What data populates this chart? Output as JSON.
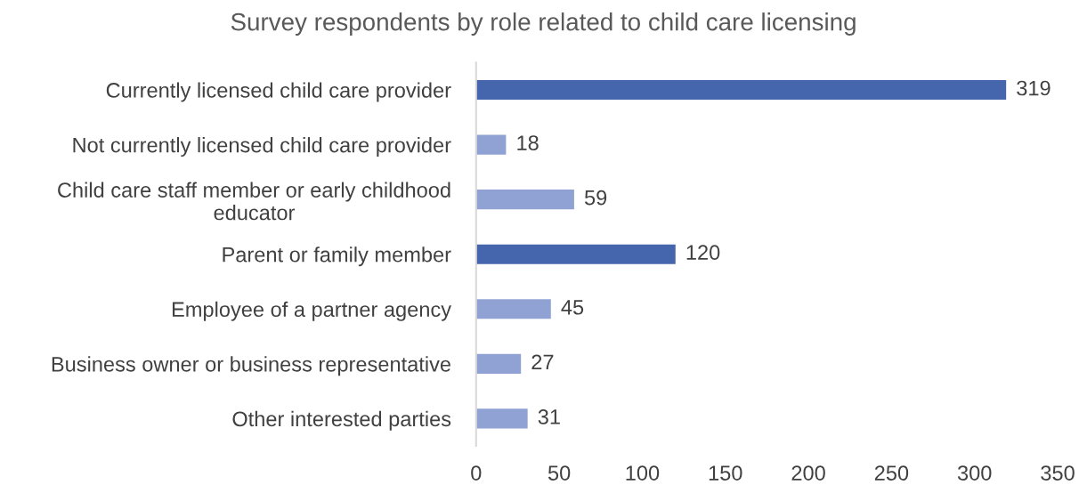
{
  "chart_data": {
    "type": "bar",
    "orientation": "horizontal",
    "title": "Survey respondents by role related to child care licensing",
    "categories": [
      "Currently licensed child care provider",
      "Not currently licensed child care provider",
      "Child care staff member or early childhood\neducator",
      "Parent or family member",
      "Employee of a partner agency",
      "Business owner or business representative",
      "Other interested parties"
    ],
    "values": [
      319,
      18,
      59,
      120,
      45,
      27,
      31
    ],
    "colors": [
      "#4565ad",
      "#8fa2d3",
      "#8fa2d3",
      "#4565ad",
      "#8fa2d3",
      "#8fa2d3",
      "#8fa2d3"
    ],
    "xlim": [
      0,
      350
    ],
    "xticks": [
      0,
      50,
      100,
      150,
      200,
      250,
      300,
      350
    ],
    "data_labels": true,
    "grid": false,
    "legend": false
  }
}
